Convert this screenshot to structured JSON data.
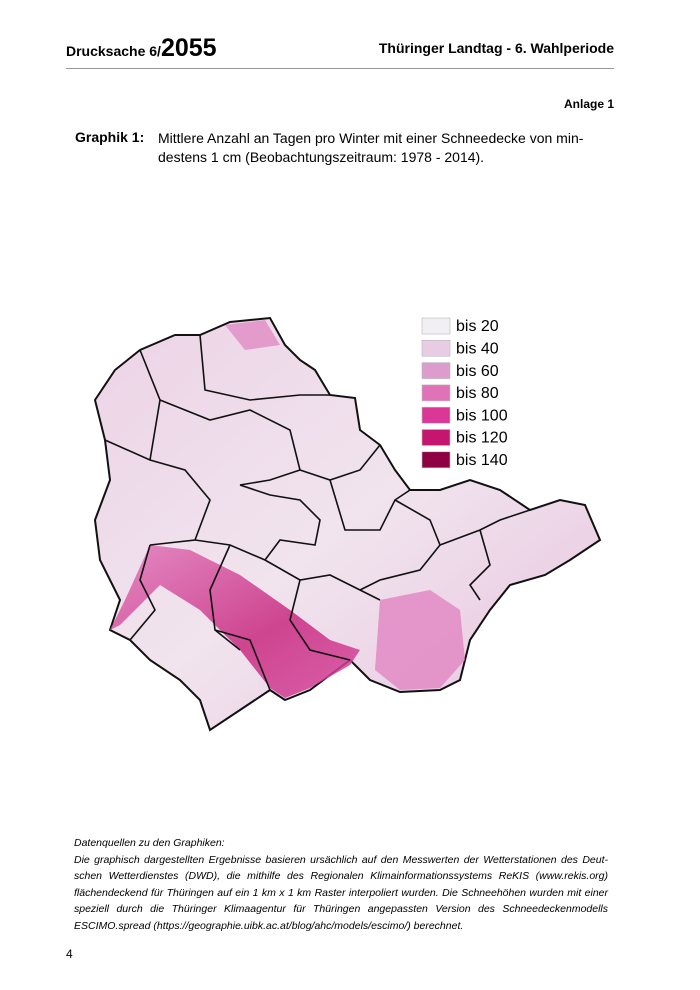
{
  "header": {
    "doc_label": "Drucksache 6/",
    "doc_number": "2055",
    "title": "Thüringer Landtag - 6. Wahlperiode"
  },
  "annex": "Anlage 1",
  "figure": {
    "label": "Graphik 1:",
    "caption_lines": [
      "Mittlere Anzahl an Tagen pro Winter mit einer Schneedecke von min-",
      "destens 1 cm (Beobachtungszeitraum: 1978 - 2014)."
    ],
    "legend": [
      {
        "label": "bis 20",
        "color": "#f1eef4"
      },
      {
        "label": "bis 40",
        "color": "#e8cce3"
      },
      {
        "label": "bis 60",
        "color": "#dc9cce"
      },
      {
        "label": "bis 80",
        "color": "#e072b8"
      },
      {
        "label": "bis 100",
        "color": "#da3796"
      },
      {
        "label": "bis 120",
        "color": "#c4166e"
      },
      {
        "label": "bis 140",
        "color": "#8d0042"
      }
    ]
  },
  "footnote": {
    "title": "Datenquellen zu den Graphiken:",
    "lines": [
      "Die graphisch dargestellten Ergebnisse basieren ursächlich auf den Messwerten der Wetterstationen des Deut-",
      "schen Wetterdienstes (DWD), die mithilfe des Regionalen Klimainformationssystems ReKIS (www.rekis.org)",
      "flächendeckend für Thüringen auf ein 1 km x 1 km Raster interpoliert wurden. Die Schneehöhen wurden mit einer",
      "speziell durch die Thüringer Klimaagentur für Thüringen angepassten Version des Schneedeckenmodells",
      "ESCIMO.spread (https://geographie.uibk.ac.at/blog/ahc/models/escimo/) berechnet."
    ]
  },
  "page_number": "4"
}
